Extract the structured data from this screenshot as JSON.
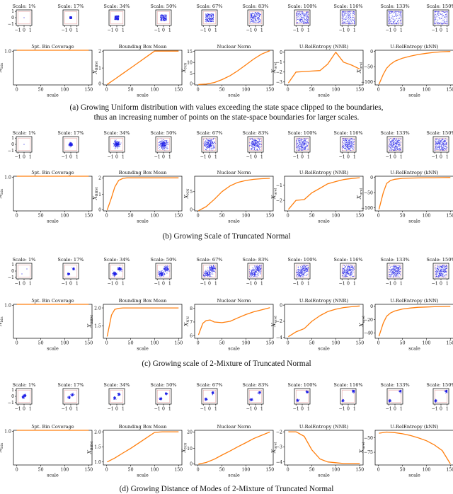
{
  "figure": {
    "panels": [
      {
        "id": "a",
        "caption_lines": [
          "(a) Growing Uniform distribution with values exceeding the state space clipped to the boundaries,",
          "thus an increasing number of points on the state-space boundaries for larger scales."
        ],
        "scatter_titles": [
          "Scale: 1%",
          "Scale: 17%",
          "Scale: 34%",
          "Scale: 50%",
          "Scale: 67%",
          "Scale: 83%",
          "Scale: 100%",
          "Scale: 116%",
          "Scale: 133%",
          "Scale: 150%"
        ]
      },
      {
        "id": "b",
        "caption_lines": [
          "(b) Growing Scale of Truncated Normal"
        ],
        "scatter_titles": [
          "Scale: 1%",
          "Scale: 17%",
          "Scale: 34%",
          "Scale: 50%",
          "Scale: 67%",
          "Scale: 83%",
          "Scale: 100%",
          "Scale: 116%",
          "Scale: 133%",
          "Scale: 150%"
        ]
      },
      {
        "id": "c",
        "caption_lines": [
          "(c) Growing scale of 2-Mixture of Truncated Normal"
        ],
        "scatter_titles": [
          "Scale: 1%",
          "Scale: 17%",
          "Scale: 34%",
          "Scale: 50%",
          "Scale: 67%",
          "Scale: 83%",
          "Scale: 100%",
          "Scale: 116%",
          "Scale: 133%",
          "Scale: 150%"
        ]
      },
      {
        "id": "d",
        "caption_lines": [
          "(d) Growing Distance of Modes of 2-Mixture of Truncated Normal"
        ],
        "scatter_titles": [
          "Scale: 1%",
          "Scale: 17%",
          "Scale: 34%",
          "Scale: 50%",
          "Scale: 67%",
          "Scale: 83%",
          "Scale: 100%",
          "Scale: 116%",
          "Scale: 133%",
          "Scale: 150%"
        ]
      }
    ],
    "scatter_ticks": [
      "−1",
      "0",
      "1"
    ],
    "colors": {
      "scatter_points": "#1f1fe6",
      "state_box": "#e6a3a3",
      "line": "#ff7f0e"
    }
  },
  "chart_data": [
    {
      "type": "line",
      "panel": "a",
      "title": "5pt. Bin Coverage",
      "xlabel": "scale",
      "ylabel": "X_bin",
      "ylim": [
        0,
        1.0
      ],
      "yticks": [
        "1.0"
      ],
      "xticks": [
        "0",
        "50",
        "100",
        "150"
      ],
      "x": [
        0,
        10,
        25,
        40,
        55,
        70,
        85,
        100,
        115,
        130,
        150
      ],
      "values": [
        1,
        1,
        1,
        1,
        1,
        1,
        1,
        1,
        1,
        1,
        1
      ]
    },
    {
      "type": "line",
      "panel": "a",
      "title": "Bounding Box Mean",
      "xlabel": "scale",
      "ylabel": "X_BBM",
      "ylim": [
        0,
        2.05
      ],
      "yticks": [
        "0",
        "1",
        "2"
      ],
      "xticks": [
        "0",
        "50",
        "100",
        "150"
      ],
      "x": [
        1,
        17,
        34,
        50,
        67,
        83,
        100,
        116,
        133,
        150
      ],
      "values": [
        0.03,
        0.34,
        0.68,
        1.0,
        1.34,
        1.66,
        2.0,
        2.0,
        2.0,
        2.0
      ]
    },
    {
      "type": "line",
      "panel": "a",
      "title": "Nuclear Norm",
      "xlabel": "scale",
      "ylabel": "X_NN",
      "ylim": [
        -0.2,
        15.5
      ],
      "yticks": [
        "0",
        "5",
        "10",
        "15"
      ],
      "xticks": [
        "0",
        "50",
        "100",
        "150"
      ],
      "x": [
        1,
        17,
        34,
        50,
        67,
        83,
        100,
        116,
        133,
        150
      ],
      "values": [
        0.0,
        0.2,
        0.9,
        2.2,
        4.0,
        6.2,
        8.9,
        11.5,
        13.8,
        15.3
      ]
    },
    {
      "type": "line",
      "panel": "a",
      "title": "U-RelEntropy (NNR)",
      "xlabel": "scale",
      "ylabel": "X_urel",
      "ylim": [
        -3.3,
        0.2
      ],
      "yticks": [
        "−3",
        "−2",
        "−1",
        "0"
      ],
      "xticks": [
        "0",
        "50",
        "100",
        "150"
      ],
      "x": [
        1,
        17,
        34,
        50,
        67,
        83,
        100,
        116,
        133,
        150
      ],
      "values": [
        -3.1,
        -2.0,
        -1.95,
        -1.9,
        -1.85,
        -1.2,
        0.0,
        -1.0,
        -1.3,
        -1.7
      ]
    },
    {
      "type": "line",
      "panel": "a",
      "title": "U-RelEntropy (kNN)",
      "xlabel": "scale",
      "ylabel": "X_urel",
      "ylim": [
        -110,
        4
      ],
      "yticks": [
        "−100",
        "−50",
        "0"
      ],
      "xticks": [
        "0",
        "50",
        "100",
        "150"
      ],
      "x": [
        1,
        10,
        17,
        25,
        34,
        50,
        67,
        83,
        100,
        116,
        133,
        150
      ],
      "values": [
        -108,
        -75,
        -55,
        -42,
        -32,
        -22,
        -15,
        -10,
        -6,
        -3,
        -1,
        0
      ]
    },
    {
      "type": "line",
      "panel": "b",
      "title": "5pt. Bin Coverage",
      "xlabel": "scale",
      "ylabel": "X_bin",
      "ylim": [
        0,
        1.0
      ],
      "yticks": [
        "1.0"
      ],
      "xticks": [
        "0",
        "50",
        "100",
        "150"
      ],
      "x": [
        0,
        10,
        25,
        40,
        55,
        70,
        85,
        100,
        115,
        130,
        150
      ],
      "values": [
        1,
        1,
        1,
        1,
        1,
        1,
        1,
        1,
        1,
        1,
        1
      ]
    },
    {
      "type": "line",
      "panel": "b",
      "title": "Bounding Box Mean",
      "xlabel": "scale",
      "ylabel": "X_BBM",
      "ylim": [
        0,
        2.1
      ],
      "yticks": [
        "0",
        "1",
        "2"
      ],
      "xticks": [
        "0",
        "50",
        "100",
        "150"
      ],
      "x": [
        1,
        10,
        17,
        25,
        34,
        42,
        50,
        67,
        83,
        100,
        116,
        133,
        150
      ],
      "values": [
        0.05,
        0.8,
        1.45,
        1.85,
        1.97,
        2.0,
        2.0,
        2.0,
        2.0,
        2.0,
        2.0,
        2.0,
        2.0
      ]
    },
    {
      "type": "line",
      "panel": "b",
      "title": "Nuclear Norm",
      "xlabel": "scale",
      "ylabel": "X_NN",
      "ylim": [
        0,
        9
      ],
      "yticks": [
        "0",
        "5"
      ],
      "xticks": [
        "0",
        "50",
        "100",
        "150"
      ],
      "x": [
        1,
        17,
        34,
        50,
        67,
        83,
        100,
        116,
        133,
        150
      ],
      "values": [
        0.05,
        1.1,
        3.0,
        5.0,
        6.5,
        7.4,
        7.9,
        8.2,
        8.35,
        8.45
      ]
    },
    {
      "type": "line",
      "panel": "b",
      "title": "U-RelEntropy (NNR)",
      "xlabel": "scale",
      "ylabel": "X_urel",
      "ylim": [
        -2.7,
        -0.4
      ],
      "yticks": [
        "−2",
        "−1"
      ],
      "xticks": [
        "0",
        "50",
        "100",
        "150"
      ],
      "x": [
        1,
        17,
        34,
        50,
        67,
        83,
        100,
        116,
        133,
        150
      ],
      "values": [
        -2.6,
        -2.0,
        -1.95,
        -1.5,
        -1.2,
        -0.9,
        -0.75,
        -0.62,
        -0.55,
        -0.5
      ]
    },
    {
      "type": "line",
      "panel": "b",
      "title": "U-RelEntropy (kNN)",
      "xlabel": "scale",
      "ylabel": "X_urel",
      "ylim": [
        -110,
        4
      ],
      "yticks": [
        "−100",
        "−50",
        "0"
      ],
      "xticks": [
        "0",
        "50",
        "100",
        "150"
      ],
      "x": [
        1,
        10,
        17,
        25,
        34,
        50,
        67,
        83,
        100,
        116,
        133,
        150
      ],
      "values": [
        -105,
        -50,
        -20,
        -10,
        -6,
        -3,
        -2,
        -1.5,
        -1,
        -0.8,
        -0.5,
        -0.3
      ]
    },
    {
      "type": "line",
      "panel": "c",
      "title": "5pt. Bin Coverage",
      "xlabel": "scale",
      "ylabel": "X_bin",
      "ylim": [
        0,
        1.0
      ],
      "yticks": [
        "1.0"
      ],
      "xticks": [
        "0",
        "50",
        "100",
        "150"
      ],
      "x": [
        0,
        10,
        25,
        40,
        55,
        70,
        85,
        100,
        115,
        130,
        150
      ],
      "values": [
        1,
        1,
        1,
        1,
        1,
        1,
        1,
        1,
        1,
        1,
        1
      ]
    },
    {
      "type": "line",
      "panel": "c",
      "title": "Bounding Box Mean",
      "xlabel": "scale",
      "ylabel": "X_BBM",
      "ylim": [
        1.15,
        2.1
      ],
      "yticks": [
        "1.5",
        "2.0"
      ],
      "xticks": [
        "0",
        "50",
        "100",
        "150"
      ],
      "x": [
        1,
        10,
        17,
        25,
        34,
        50,
        67,
        83,
        100,
        116,
        133,
        150
      ],
      "values": [
        1.2,
        1.8,
        1.96,
        1.99,
        2.0,
        2.0,
        2.0,
        2.0,
        2.0,
        2.0,
        2.0,
        2.0
      ]
    },
    {
      "type": "line",
      "panel": "c",
      "title": "Nuclear Norm",
      "xlabel": "scale",
      "ylabel": "X_NN",
      "ylim": [
        5.8,
        8.3
      ],
      "yticks": [
        "6",
        "7",
        "8"
      ],
      "xticks": [
        "0",
        "50",
        "100",
        "150"
      ],
      "x": [
        1,
        10,
        17,
        25,
        34,
        50,
        67,
        83,
        100,
        116,
        133,
        150
      ],
      "values": [
        6.05,
        6.9,
        7.1,
        7.15,
        7.0,
        6.95,
        7.05,
        7.3,
        7.55,
        7.75,
        7.9,
        8.05
      ]
    },
    {
      "type": "line",
      "panel": "c",
      "title": "U-RelEntropy (NNR)",
      "xlabel": "scale",
      "ylabel": "X_urel",
      "ylim": [
        -4.1,
        0.1
      ],
      "yticks": [
        "−4",
        "−2",
        "0"
      ],
      "xticks": [
        "0",
        "50",
        "100",
        "150"
      ],
      "x": [
        1,
        17,
        34,
        50,
        67,
        83,
        100,
        116,
        133,
        150
      ],
      "values": [
        -3.9,
        -3.3,
        -2.9,
        -2.0,
        -1.3,
        -0.8,
        -0.5,
        -0.3,
        -0.2,
        -0.1
      ]
    },
    {
      "type": "line",
      "panel": "c",
      "title": "U-RelEntropy (kNN)",
      "xlabel": "scale",
      "ylabel": "X_urel",
      "ylim": [
        -48,
        3
      ],
      "yticks": [
        "−40",
        "−20",
        "0"
      ],
      "xticks": [
        "0",
        "50",
        "100",
        "150"
      ],
      "x": [
        1,
        10,
        17,
        25,
        34,
        50,
        67,
        83,
        100,
        116,
        133,
        150
      ],
      "values": [
        -45,
        -25,
        -15,
        -10,
        -7,
        -4,
        -2.5,
        -1.5,
        -1,
        -0.6,
        -0.3,
        -0.1
      ]
    },
    {
      "type": "line",
      "panel": "d",
      "title": "5pt. Bin Coverage",
      "xlabel": "scale",
      "ylabel": "X_bin",
      "ylim": [
        0,
        1.0
      ],
      "yticks": [
        "1.0"
      ],
      "xticks": [
        "0",
        "50",
        "100",
        "150"
      ],
      "x": [
        0,
        10,
        25,
        40,
        55,
        70,
        85,
        100,
        115,
        130,
        150
      ],
      "values": [
        1,
        1,
        1,
        1,
        1,
        1,
        1,
        1,
        1,
        1,
        1
      ]
    },
    {
      "type": "line",
      "panel": "d",
      "title": "Bounding Box Mean",
      "xlabel": "scale",
      "ylabel": "X_BBM",
      "ylim": [
        0.9,
        2.05
      ],
      "yticks": [
        "1.0",
        "1.5",
        "2.0"
      ],
      "xticks": [
        "0",
        "50",
        "100",
        "150"
      ],
      "x": [
        1,
        17,
        34,
        50,
        67,
        83,
        100,
        116,
        133,
        150
      ],
      "values": [
        1.0,
        1.13,
        1.3,
        1.45,
        1.63,
        1.8,
        1.98,
        2.0,
        2.0,
        2.0
      ]
    },
    {
      "type": "line",
      "panel": "d",
      "title": "Nuclear Norm",
      "xlabel": "scale",
      "ylabel": "X_NN",
      "ylim": [
        0,
        21
      ],
      "yticks": [
        "0",
        "10",
        "20"
      ],
      "xticks": [
        "0",
        "50",
        "100",
        "150"
      ],
      "x": [
        1,
        17,
        34,
        50,
        67,
        83,
        100,
        116,
        133,
        150
      ],
      "values": [
        0.5,
        1.5,
        3.5,
        6.0,
        8.5,
        11.0,
        13.5,
        16.0,
        18.0,
        20.0
      ]
    },
    {
      "type": "line",
      "panel": "d",
      "title": "U-RelEntropy (NNR)",
      "xlabel": "scale",
      "ylabel": "X_urel",
      "ylim": [
        -4.2,
        -1.9
      ],
      "yticks": [
        "−2",
        "−3",
        "−4"
      ],
      "xticks": [
        "0",
        "50",
        "100",
        "150"
      ],
      "x": [
        1,
        17,
        34,
        50,
        67,
        83,
        100,
        116,
        133,
        150
      ],
      "values": [
        -2.0,
        -2.0,
        -2.3,
        -3.2,
        -3.8,
        -4.0,
        -4.05,
        -4.1,
        -4.1,
        -4.1
      ]
    },
    {
      "type": "line",
      "panel": "d",
      "title": "U-RelEntropy (kNN)",
      "xlabel": "scale",
      "ylabel": "X_urel",
      "ylim": [
        -97,
        -37
      ],
      "yticks": [
        "−50",
        "−75"
      ],
      "xticks": [
        "0",
        "50",
        "100",
        "150"
      ],
      "x": [
        1,
        17,
        34,
        50,
        67,
        83,
        100,
        116,
        133,
        150
      ],
      "values": [
        -42,
        -40,
        -41,
        -43,
        -46,
        -50,
        -55,
        -62,
        -72,
        -95
      ]
    }
  ]
}
